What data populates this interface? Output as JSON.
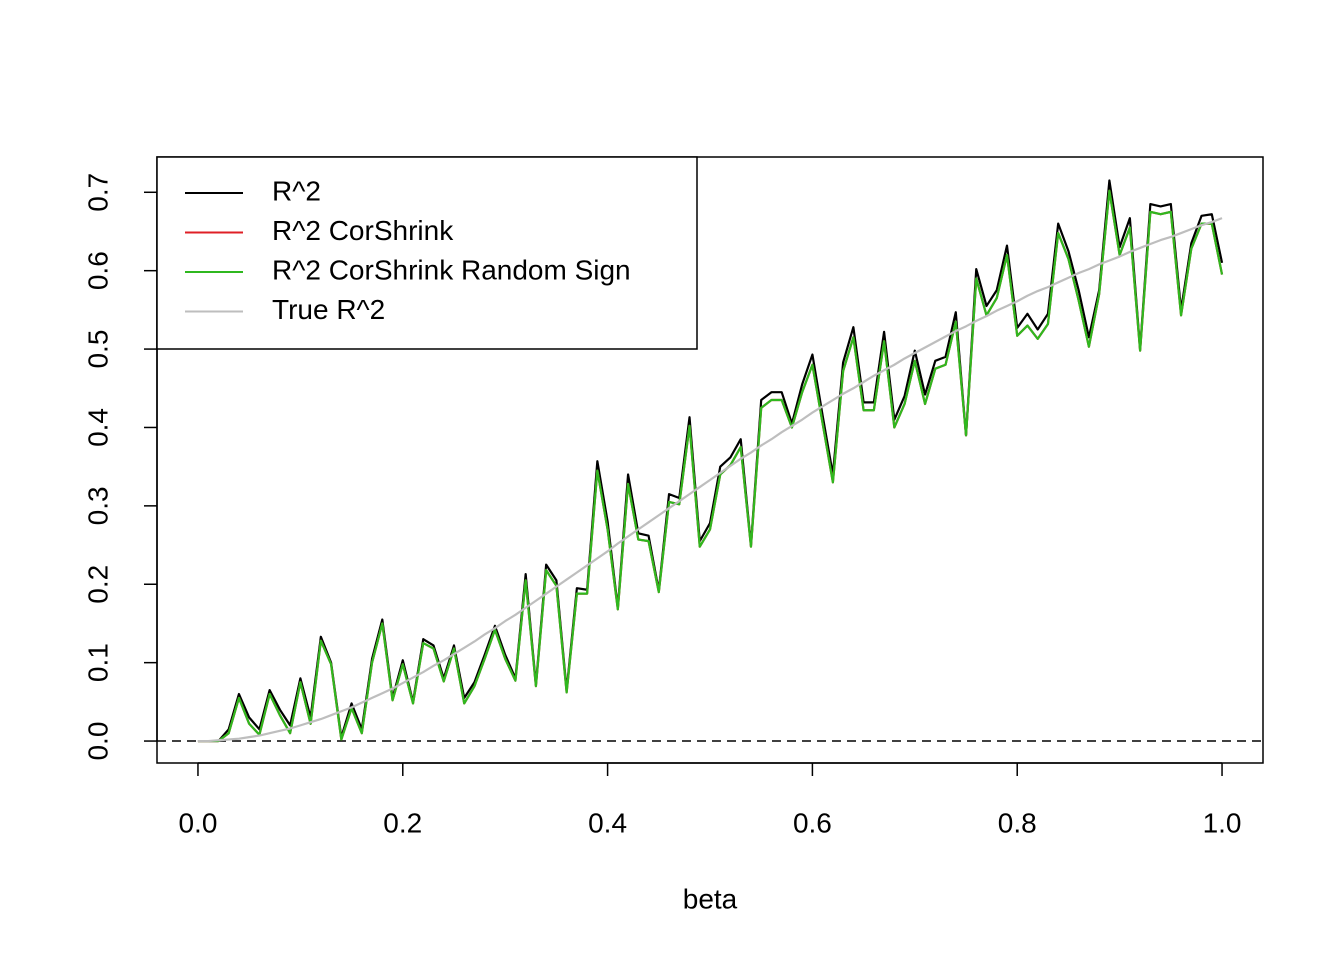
{
  "chart_data": {
    "type": "line",
    "x_label": "beta",
    "x": [
      0,
      0.01,
      0.02,
      0.03,
      0.04,
      0.05,
      0.06,
      0.07,
      0.08,
      0.09,
      0.1,
      0.11,
      0.12,
      0.13,
      0.14,
      0.15,
      0.16,
      0.17,
      0.18,
      0.19,
      0.2,
      0.21,
      0.22,
      0.23,
      0.24,
      0.25,
      0.26,
      0.27,
      0.28,
      0.29,
      0.3,
      0.31,
      0.32,
      0.33,
      0.34,
      0.35,
      0.36,
      0.37,
      0.38,
      0.39,
      0.4,
      0.41,
      0.42,
      0.43,
      0.44,
      0.45,
      0.46,
      0.47,
      0.48,
      0.49,
      0.5,
      0.51,
      0.52,
      0.53,
      0.54,
      0.55,
      0.56,
      0.57,
      0.58,
      0.59,
      0.6,
      0.61,
      0.62,
      0.63,
      0.64,
      0.65,
      0.66,
      0.67,
      0.68,
      0.69,
      0.7,
      0.71,
      0.72,
      0.73,
      0.74,
      0.75,
      0.76,
      0.77,
      0.78,
      0.79,
      0.8,
      0.81,
      0.82,
      0.83,
      0.84,
      0.85,
      0.86,
      0.87,
      0.88,
      0.89,
      0.9,
      0.91,
      0.92,
      0.93,
      0.94,
      0.95,
      0.96,
      0.97,
      0.98,
      0.99,
      1
    ],
    "series": [
      {
        "name": "R^2",
        "color": "#000000",
        "values": [
          0,
          0,
          0,
          0.015,
          0.06,
          0.03,
          0.015,
          0.065,
          0.04,
          0.02,
          0.08,
          0.03,
          0.133,
          0.1,
          0.005,
          0.048,
          0.015,
          0.105,
          0.155,
          0.055,
          0.103,
          0.05,
          0.13,
          0.122,
          0.08,
          0.122,
          0.055,
          0.075,
          0.11,
          0.147,
          0.11,
          0.08,
          0.213,
          0.072,
          0.225,
          0.205,
          0.065,
          0.195,
          0.193,
          0.357,
          0.28,
          0.17,
          0.34,
          0.265,
          0.262,
          0.192,
          0.315,
          0.31,
          0.413,
          0.255,
          0.278,
          0.35,
          0.362,
          0.385,
          0.25,
          0.435,
          0.445,
          0.445,
          0.405,
          0.455,
          0.493,
          0.415,
          0.34,
          0.483,
          0.528,
          0.432,
          0.432,
          0.522,
          0.41,
          0.44,
          0.498,
          0.442,
          0.485,
          0.49,
          0.547,
          0.39,
          0.602,
          0.555,
          0.575,
          0.632,
          0.527,
          0.545,
          0.525,
          0.545,
          0.66,
          0.625,
          0.575,
          0.515,
          0.575,
          0.715,
          0.63,
          0.667,
          0.5,
          0.685,
          0.682,
          0.685,
          0.55,
          0.635,
          0.67,
          0.672,
          0.61
        ]
      },
      {
        "name": "R^2 CorShrink",
        "color": "#df1f26",
        "values": [
          0,
          0,
          0,
          0.01,
          0.055,
          0.022,
          0.008,
          0.06,
          0.033,
          0.01,
          0.075,
          0.022,
          0.128,
          0.098,
          0.002,
          0.042,
          0.01,
          0.1,
          0.15,
          0.052,
          0.098,
          0.048,
          0.125,
          0.118,
          0.076,
          0.118,
          0.048,
          0.07,
          0.105,
          0.142,
          0.105,
          0.077,
          0.205,
          0.07,
          0.218,
          0.198,
          0.062,
          0.188,
          0.188,
          0.345,
          0.27,
          0.168,
          0.328,
          0.257,
          0.255,
          0.19,
          0.305,
          0.302,
          0.402,
          0.248,
          0.27,
          0.34,
          0.352,
          0.375,
          0.248,
          0.425,
          0.435,
          0.435,
          0.4,
          0.445,
          0.48,
          0.405,
          0.33,
          0.472,
          0.515,
          0.422,
          0.422,
          0.51,
          0.4,
          0.43,
          0.485,
          0.43,
          0.475,
          0.48,
          0.535,
          0.39,
          0.59,
          0.543,
          0.565,
          0.62,
          0.517,
          0.53,
          0.513,
          0.532,
          0.648,
          0.615,
          0.562,
          0.503,
          0.57,
          0.702,
          0.62,
          0.655,
          0.498,
          0.675,
          0.672,
          0.675,
          0.543,
          0.628,
          0.66,
          0.66,
          0.595
        ]
      },
      {
        "name": "R^2 CorShrink Random Sign",
        "color": "#2fb81f",
        "values": [
          0,
          0,
          0,
          0.01,
          0.055,
          0.022,
          0.008,
          0.06,
          0.033,
          0.01,
          0.075,
          0.022,
          0.128,
          0.098,
          0.002,
          0.042,
          0.01,
          0.1,
          0.15,
          0.052,
          0.098,
          0.048,
          0.125,
          0.118,
          0.076,
          0.118,
          0.048,
          0.07,
          0.105,
          0.142,
          0.105,
          0.077,
          0.205,
          0.07,
          0.218,
          0.198,
          0.062,
          0.188,
          0.188,
          0.345,
          0.27,
          0.168,
          0.328,
          0.257,
          0.255,
          0.19,
          0.305,
          0.302,
          0.402,
          0.248,
          0.27,
          0.34,
          0.352,
          0.375,
          0.248,
          0.425,
          0.435,
          0.435,
          0.4,
          0.445,
          0.48,
          0.405,
          0.33,
          0.472,
          0.515,
          0.422,
          0.422,
          0.51,
          0.4,
          0.43,
          0.485,
          0.43,
          0.475,
          0.48,
          0.535,
          0.39,
          0.59,
          0.543,
          0.565,
          0.62,
          0.517,
          0.53,
          0.513,
          0.532,
          0.648,
          0.615,
          0.562,
          0.503,
          0.57,
          0.702,
          0.62,
          0.655,
          0.498,
          0.675,
          0.672,
          0.675,
          0.543,
          0.628,
          0.66,
          0.66,
          0.595
        ]
      },
      {
        "name": "True R^2",
        "color": "#bebebe",
        "values": [
          0,
          0,
          0.001,
          0.002,
          0.003,
          0.005,
          0.007,
          0.01,
          0.013,
          0.016,
          0.02,
          0.024,
          0.028,
          0.033,
          0.038,
          0.043,
          0.049,
          0.055,
          0.061,
          0.067,
          0.074,
          0.081,
          0.088,
          0.096,
          0.103,
          0.111,
          0.119,
          0.127,
          0.136,
          0.144,
          0.153,
          0.161,
          0.17,
          0.179,
          0.188,
          0.197,
          0.206,
          0.215,
          0.224,
          0.233,
          0.242,
          0.252,
          0.261,
          0.27,
          0.279,
          0.288,
          0.297,
          0.306,
          0.315,
          0.324,
          0.333,
          0.342,
          0.351,
          0.36,
          0.368,
          0.377,
          0.385,
          0.394,
          0.402,
          0.41,
          0.419,
          0.427,
          0.435,
          0.443,
          0.45,
          0.458,
          0.466,
          0.473,
          0.48,
          0.488,
          0.495,
          0.502,
          0.509,
          0.516,
          0.523,
          0.529,
          0.536,
          0.542,
          0.549,
          0.555,
          0.561,
          0.568,
          0.574,
          0.579,
          0.585,
          0.591,
          0.597,
          0.602,
          0.608,
          0.613,
          0.618,
          0.624,
          0.629,
          0.634,
          0.639,
          0.643,
          0.648,
          0.653,
          0.658,
          0.662,
          0.667
        ]
      }
    ],
    "xlim": [
      -0.04,
      1.04
    ],
    "ylim": [
      -0.028,
      0.745
    ],
    "xticks": [
      {
        "value": 0,
        "label": "0.0"
      },
      0.2,
      0.4,
      0.6,
      0.8,
      {
        "value": 1,
        "label": "1.0"
      }
    ],
    "yticks": [
      {
        "value": 0,
        "label": "0.0"
      },
      0.1,
      0.2,
      0.3,
      0.4,
      0.5,
      0.6,
      0.7
    ],
    "reference_line": {
      "y": 0,
      "style": "dashed"
    },
    "legend": "top-left"
  }
}
